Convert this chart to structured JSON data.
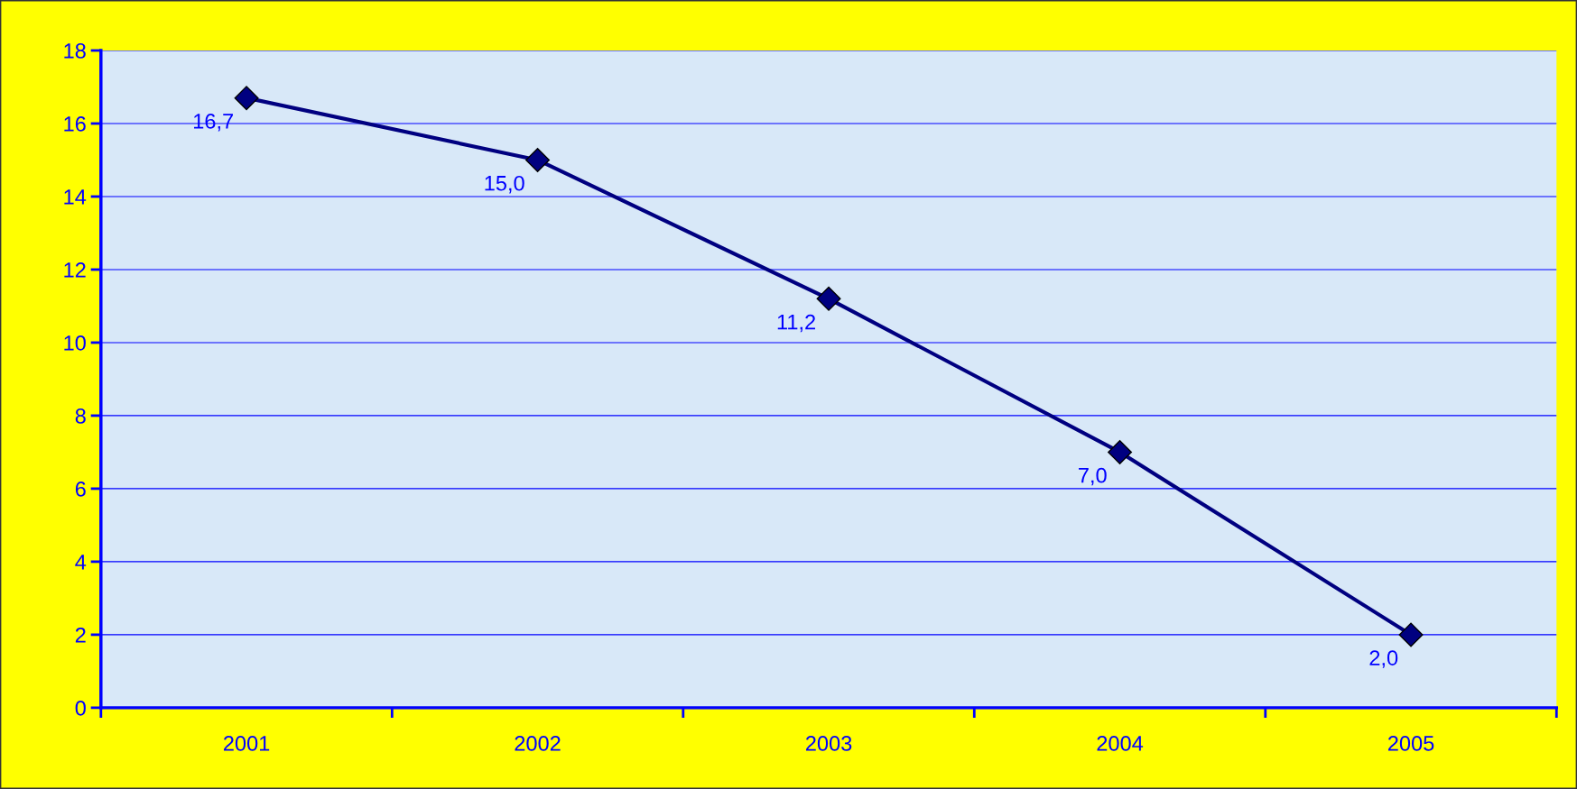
{
  "chart_data": {
    "type": "line",
    "categories": [
      "2001",
      "2002",
      "2003",
      "2004",
      "2005"
    ],
    "values": [
      16.7,
      15.0,
      11.2,
      7.0,
      2.0
    ],
    "value_labels": [
      "16,7",
      "15,0",
      "11,2",
      "7,0",
      "2,0"
    ],
    "color": "#000080",
    "marker": "diamond",
    "line_style": "solid",
    "ylim": [
      0,
      18
    ],
    "yticks": [
      0,
      2,
      4,
      6,
      8,
      10,
      12,
      14,
      16,
      18
    ],
    "grid": "y"
  }
}
